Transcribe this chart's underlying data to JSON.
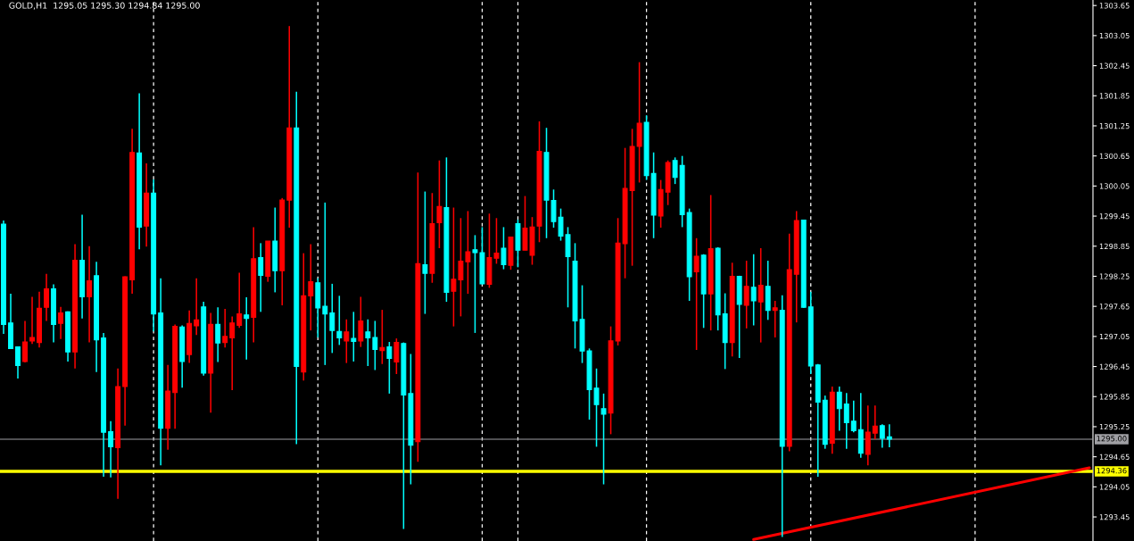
{
  "chart_data": {
    "type": "candlestick",
    "title": "GOLD,H1  1295.05 1295.30 1294.84 1295.00",
    "categories": [
      null,
      null,
      null,
      null,
      null,
      null,
      null,
      null,
      null,
      null,
      null,
      null,
      null,
      null,
      null,
      null,
      null,
      null,
      null,
      null,
      null,
      null,
      null,
      null,
      null,
      null,
      null,
      null,
      null,
      null,
      null,
      null,
      null,
      null,
      null,
      null,
      null,
      null,
      null,
      null,
      null,
      null,
      null,
      null,
      null,
      null,
      null,
      null,
      null,
      null,
      null,
      null,
      null,
      null,
      null,
      null,
      null,
      null,
      null,
      null,
      null,
      null,
      null,
      null,
      null,
      null,
      null,
      null,
      null,
      null,
      null,
      null,
      null,
      null,
      null,
      null,
      null,
      null,
      null,
      null,
      null,
      null,
      null,
      null,
      null,
      null,
      null,
      null,
      null,
      null,
      null,
      null,
      null,
      null,
      null,
      null,
      null,
      null,
      null,
      null,
      null,
      null,
      null,
      null,
      null,
      null,
      null,
      null,
      null,
      null,
      null,
      null,
      null,
      null,
      null,
      null,
      null,
      null,
      null,
      null,
      null,
      null,
      null,
      null,
      null,
      null,
      null,
      null,
      null,
      null,
      null,
      null,
      null,
      null,
      null,
      null,
      null,
      null,
      null,
      null,
      null,
      null,
      null,
      null,
      null,
      null,
      null,
      null,
      null,
      null,
      null,
      null,
      null
    ],
    "ohlc": [
      [
        1299.29,
        1299.36,
        1297.1,
        1297.29
      ],
      [
        1297.32,
        1297.9,
        1296.8,
        1296.81
      ],
      [
        1296.84,
        1296.84,
        1296.21,
        1296.47
      ],
      [
        1296.55,
        1297.36,
        1296.53,
        1296.94
      ],
      [
        1296.96,
        1297.84,
        1296.9,
        1297.03
      ],
      [
        1296.93,
        1297.94,
        1296.83,
        1297.61
      ],
      [
        1297.63,
        1298.3,
        1297.36,
        1298.0
      ],
      [
        1298.0,
        1298.09,
        1296.93,
        1297.29
      ],
      [
        1297.31,
        1297.64,
        1297.0,
        1297.52
      ],
      [
        1297.54,
        1297.55,
        1296.55,
        1296.74
      ],
      [
        1296.74,
        1298.89,
        1296.41,
        1298.57
      ],
      [
        1298.57,
        1299.48,
        1297.41,
        1297.84
      ],
      [
        1297.84,
        1298.85,
        1296.93,
        1298.16
      ],
      [
        1298.26,
        1298.54,
        1296.34,
        1296.98
      ],
      [
        1297.02,
        1297.12,
        1294.25,
        1295.14
      ],
      [
        1295.15,
        1295.36,
        1294.24,
        1294.85
      ],
      [
        1294.83,
        1296.41,
        1293.81,
        1296.05
      ],
      [
        1296.05,
        1298.25,
        1295.27,
        1298.24
      ],
      [
        1298.18,
        1301.19,
        1297.9,
        1300.72
      ],
      [
        1300.71,
        1301.9,
        1298.79,
        1299.23
      ],
      [
        1299.25,
        1300.5,
        1298.84,
        1299.91
      ],
      [
        1299.91,
        1300.18,
        1297.15,
        1297.5
      ],
      [
        1297.52,
        1298.21,
        1294.48,
        1295.22
      ],
      [
        1295.22,
        1296.48,
        1294.79,
        1295.96
      ],
      [
        1295.93,
        1297.29,
        1295.21,
        1297.25
      ],
      [
        1297.24,
        1297.27,
        1296.03,
        1296.55
      ],
      [
        1296.69,
        1297.57,
        1296.52,
        1297.31
      ],
      [
        1297.26,
        1298.21,
        1297.08,
        1297.38
      ],
      [
        1297.64,
        1297.74,
        1296.27,
        1296.32
      ],
      [
        1296.32,
        1297.52,
        1295.53,
        1297.29
      ],
      [
        1297.29,
        1297.63,
        1296.54,
        1296.92
      ],
      [
        1296.93,
        1297.6,
        1296.83,
        1297.05
      ],
      [
        1297.02,
        1297.45,
        1295.98,
        1297.32
      ],
      [
        1297.27,
        1298.32,
        1297.22,
        1297.5
      ],
      [
        1297.48,
        1297.83,
        1296.59,
        1297.41
      ],
      [
        1297.43,
        1299.23,
        1296.93,
        1298.6
      ],
      [
        1298.62,
        1298.91,
        1297.54,
        1298.27
      ],
      [
        1298.25,
        1298.95,
        1298.14,
        1298.95
      ],
      [
        1298.95,
        1299.62,
        1297.93,
        1298.36
      ],
      [
        1298.36,
        1299.81,
        1297.67,
        1299.77
      ],
      [
        1299.77,
        1303.24,
        1299.22,
        1301.21
      ],
      [
        1301.21,
        1301.93,
        1294.9,
        1296.45
      ],
      [
        1296.34,
        1298.71,
        1296.17,
        1297.86
      ],
      [
        1297.86,
        1298.89,
        1297.17,
        1298.14
      ],
      [
        1298.12,
        1298.21,
        1297.03,
        1297.62
      ],
      [
        1297.65,
        1299.72,
        1296.48,
        1297.5
      ],
      [
        1297.52,
        1298.1,
        1296.72,
        1297.17
      ],
      [
        1297.15,
        1297.86,
        1296.88,
        1297.02
      ],
      [
        1296.96,
        1297.39,
        1296.52,
        1297.14
      ],
      [
        1297.01,
        1297.54,
        1296.55,
        1296.95
      ],
      [
        1296.96,
        1297.84,
        1296.84,
        1297.36
      ],
      [
        1297.14,
        1297.39,
        1296.46,
        1297.02
      ],
      [
        1297.03,
        1297.36,
        1296.38,
        1296.79
      ],
      [
        1296.77,
        1297.58,
        1296.5,
        1296.83
      ],
      [
        1296.84,
        1296.94,
        1295.91,
        1296.61
      ],
      [
        1296.54,
        1297.01,
        1296.3,
        1296.93
      ],
      [
        1296.91,
        1296.93,
        1293.21,
        1295.88
      ],
      [
        1295.91,
        1296.7,
        1294.1,
        1294.88
      ],
      [
        1294.95,
        1300.32,
        1294.55,
        1298.5
      ],
      [
        1298.48,
        1299.94,
        1297.5,
        1298.31
      ],
      [
        1298.31,
        1299.91,
        1298.12,
        1299.3
      ],
      [
        1299.32,
        1300.56,
        1298.81,
        1299.64
      ],
      [
        1299.62,
        1300.62,
        1297.74,
        1297.93
      ],
      [
        1297.95,
        1299.62,
        1297.25,
        1298.19
      ],
      [
        1298.18,
        1299.41,
        1297.45,
        1298.55
      ],
      [
        1298.54,
        1299.55,
        1297.9,
        1298.74
      ],
      [
        1298.78,
        1299.07,
        1297.12,
        1298.72
      ],
      [
        1298.72,
        1299.23,
        1298.09,
        1298.1
      ],
      [
        1298.09,
        1299.5,
        1298.02,
        1298.62
      ],
      [
        1298.61,
        1299.41,
        1298.5,
        1298.71
      ],
      [
        1298.81,
        1299.23,
        1298.39,
        1298.48
      ],
      [
        1298.47,
        1299.03,
        1298.38,
        1299.03
      ],
      [
        1299.3,
        1299.38,
        1298.43,
        1298.77
      ],
      [
        1298.77,
        1299.85,
        1298.77,
        1299.21
      ],
      [
        1298.67,
        1299.43,
        1298.48,
        1299.23
      ],
      [
        1299.25,
        1301.34,
        1298.93,
        1300.74
      ],
      [
        1300.72,
        1301.21,
        1299.01,
        1299.77
      ],
      [
        1299.76,
        1299.98,
        1299.22,
        1299.34
      ],
      [
        1299.43,
        1299.6,
        1298.96,
        1299.05
      ],
      [
        1299.08,
        1299.23,
        1297.63,
        1298.64
      ],
      [
        1298.55,
        1298.91,
        1296.81,
        1297.36
      ],
      [
        1297.39,
        1298.07,
        1296.52,
        1296.76
      ],
      [
        1296.76,
        1296.81,
        1295.39,
        1295.99
      ],
      [
        1296.02,
        1296.41,
        1294.85,
        1295.69
      ],
      [
        1295.61,
        1295.91,
        1294.1,
        1295.5
      ],
      [
        1295.52,
        1297.25,
        1295.1,
        1296.96
      ],
      [
        1296.96,
        1299.41,
        1296.87,
        1298.91
      ],
      [
        1298.9,
        1300.81,
        1298.21,
        1300.0
      ],
      [
        1299.96,
        1301.19,
        1298.46,
        1300.84
      ],
      [
        1300.84,
        1302.52,
        1300.12,
        1301.3
      ],
      [
        1301.32,
        1301.46,
        1300.17,
        1300.26
      ],
      [
        1300.3,
        1300.72,
        1299.01,
        1299.47
      ],
      [
        1299.45,
        1300.17,
        1299.22,
        1299.98
      ],
      [
        1299.93,
        1300.56,
        1299.67,
        1300.52
      ],
      [
        1300.56,
        1300.62,
        1300.09,
        1300.22
      ],
      [
        1300.46,
        1300.65,
        1299.23,
        1299.48
      ],
      [
        1299.52,
        1299.6,
        1297.76,
        1298.24
      ],
      [
        1298.34,
        1299.01,
        1296.78,
        1298.65
      ],
      [
        1298.67,
        1298.69,
        1297.22,
        1297.9
      ],
      [
        1297.9,
        1299.87,
        1297.17,
        1298.8
      ],
      [
        1298.81,
        1298.83,
        1297.17,
        1297.48
      ],
      [
        1297.5,
        1297.91,
        1296.4,
        1296.93
      ],
      [
        1296.93,
        1298.52,
        1296.65,
        1298.25
      ],
      [
        1298.25,
        1298.26,
        1296.62,
        1297.69
      ],
      [
        1297.67,
        1298.56,
        1297.21,
        1298.05
      ],
      [
        1298.03,
        1298.69,
        1297.27,
        1297.76
      ],
      [
        1297.74,
        1298.81,
        1296.93,
        1298.07
      ],
      [
        1298.05,
        1298.56,
        1297.38,
        1297.57
      ],
      [
        1297.57,
        1297.76,
        1297.03,
        1297.62
      ],
      [
        1297.57,
        1297.87,
        1293.05,
        1294.86
      ],
      [
        1294.86,
        1299.1,
        1294.76,
        1298.38
      ],
      [
        1298.29,
        1299.55,
        1297.33,
        1299.36
      ],
      [
        1299.37,
        1299.37,
        1297.62,
        1297.63
      ],
      [
        1297.64,
        1297.94,
        1296.3,
        1296.46
      ],
      [
        1296.48,
        1296.5,
        1294.25,
        1295.74
      ],
      [
        1295.78,
        1295.87,
        1294.81,
        1294.9
      ],
      [
        1294.92,
        1296.05,
        1294.71,
        1295.94
      ],
      [
        1295.94,
        1296.05,
        1295.17,
        1295.61
      ],
      [
        1295.7,
        1295.92,
        1294.81,
        1295.33
      ],
      [
        1295.36,
        1295.77,
        1295.14,
        1295.17
      ],
      [
        1295.19,
        1295.92,
        1294.63,
        1294.72
      ],
      [
        1294.7,
        1295.67,
        1294.48,
        1295.14
      ],
      [
        1295.12,
        1295.67,
        1295.0,
        1295.26
      ],
      [
        1295.27,
        1295.3,
        1294.83,
        1295.02
      ],
      [
        1295.05,
        1295.3,
        1294.84,
        1295.0
      ],
      null,
      null,
      null,
      null,
      null,
      null,
      null,
      null,
      null,
      null,
      null,
      null,
      null,
      null,
      null,
      null,
      null,
      null,
      null,
      null,
      null,
      null,
      null,
      null,
      null,
      null,
      null,
      null
    ],
    "colors": [
      "#00ffff",
      "#00ffff",
      "#00ffff",
      "#ff0000",
      "#ff0000",
      "#ff0000",
      "#ff0000",
      "#00ffff",
      "#ff0000",
      "#00ffff",
      "#ff0000",
      "#00ffff",
      "#ff0000",
      "#00ffff",
      "#00ffff",
      "#00ffff",
      "#ff0000",
      "#ff0000",
      "#ff0000",
      "#00ffff",
      "#ff0000",
      "#00ffff",
      "#00ffff",
      "#ff0000",
      "#ff0000",
      "#00ffff",
      "#ff0000",
      "#ff0000",
      "#00ffff",
      "#ff0000",
      "#00ffff",
      "#ff0000",
      "#ff0000",
      "#ff0000",
      "#00ffff",
      "#ff0000",
      "#00ffff",
      "#ff0000",
      "#00ffff",
      "#ff0000",
      "#ff0000",
      "#00ffff",
      "#ff0000",
      "#ff0000",
      "#00ffff",
      "#00ffff",
      "#00ffff",
      "#00ffff",
      "#ff0000",
      "#00ffff",
      "#ff0000",
      "#00ffff",
      "#00ffff",
      "#ff0000",
      "#00ffff",
      "#ff0000",
      "#00ffff",
      "#00ffff",
      "#ff0000",
      "#00ffff",
      "#ff0000",
      "#ff0000",
      "#00ffff",
      "#ff0000",
      "#ff0000",
      "#ff0000",
      "#00ffff",
      "#00ffff",
      "#ff0000",
      "#ff0000",
      "#00ffff",
      "#ff0000",
      "#00ffff",
      "#ff0000",
      "#ff0000",
      "#ff0000",
      "#00ffff",
      "#00ffff",
      "#00ffff",
      "#00ffff",
      "#00ffff",
      "#00ffff",
      "#00ffff",
      "#00ffff",
      "#00ffff",
      "#ff0000",
      "#ff0000",
      "#ff0000",
      "#ff0000",
      "#ff0000",
      "#00ffff",
      "#00ffff",
      "#ff0000",
      "#ff0000",
      "#00ffff",
      "#00ffff",
      "#00ffff",
      "#ff0000",
      "#00ffff",
      "#ff0000",
      "#00ffff",
      "#00ffff",
      "#ff0000",
      "#00ffff",
      "#ff0000",
      "#00ffff",
      "#ff0000",
      "#00ffff",
      "#ff0000",
      "#00ffff",
      "#ff0000",
      "#ff0000",
      "#00ffff",
      "#00ffff",
      "#00ffff",
      "#00ffff",
      "#ff0000",
      "#00ffff",
      "#00ffff",
      "#00ffff",
      "#00ffff",
      "#ff0000",
      "#ff0000",
      "#00ffff",
      "#00ffff",
      null,
      null,
      null,
      null,
      null,
      null,
      null,
      null,
      null,
      null,
      null,
      null,
      null,
      null,
      null,
      null,
      null,
      null,
      null,
      null,
      null,
      null,
      null,
      null,
      null,
      null,
      null,
      null
    ],
    "series": [
      {
        "type": "line",
        "color": "#ff0000",
        "values": [
          null,
          null,
          null,
          null,
          null,
          null,
          null,
          null,
          null,
          null,
          null,
          null,
          null,
          null,
          null,
          null,
          null,
          null,
          null,
          null,
          null,
          null,
          null,
          null,
          null,
          null,
          null,
          null,
          null,
          null,
          null,
          null,
          null,
          null,
          null,
          null,
          null,
          null,
          null,
          null,
          null,
          null,
          null,
          null,
          null,
          null,
          null,
          null,
          null,
          null,
          null,
          null,
          null,
          null,
          null,
          null,
          null,
          null,
          null,
          null,
          null,
          null,
          null,
          null,
          null,
          null,
          null,
          null,
          null,
          null,
          null,
          null,
          null,
          null,
          null,
          null,
          null,
          null,
          null,
          null,
          null,
          null,
          null,
          null,
          null,
          null,
          null,
          null,
          null,
          null,
          null,
          null,
          null,
          null,
          null,
          null,
          null,
          null,
          null,
          null,
          null,
          null,
          null,
          null,
          null,
          1293.0,
          null,
          null,
          null,
          null,
          null,
          null,
          null,
          null,
          null,
          null,
          null,
          null,
          null,
          null,
          null,
          null,
          null,
          null,
          null,
          null,
          null,
          null,
          null,
          null,
          null,
          null,
          null,
          null,
          null,
          null,
          null,
          null,
          null,
          null,
          null,
          null,
          null,
          null,
          null,
          null,
          null,
          null,
          null,
          null,
          null,
          null,
          1294.43
        ]
      }
    ],
    "ylim": [
      1292.97,
      1303.76
    ],
    "yticks": [
      1293.45,
      1294.05,
      1294.65,
      1295.25,
      1295.85,
      1296.45,
      1297.05,
      1297.65,
      1298.25,
      1298.85,
      1299.45,
      1300.05,
      1300.65,
      1301.25,
      1301.85,
      1302.45,
      1303.05,
      1303.65
    ],
    "ref_lines": [
      {
        "axis": "y",
        "value": 1295.0,
        "label": "1295.00",
        "color": "#a0a0a4"
      },
      {
        "axis": "y",
        "value": 1294.36,
        "label": "1294.36",
        "color": "#ffff00"
      }
    ],
    "tick_labels": "y",
    "grid": false,
    "legend": false
  }
}
